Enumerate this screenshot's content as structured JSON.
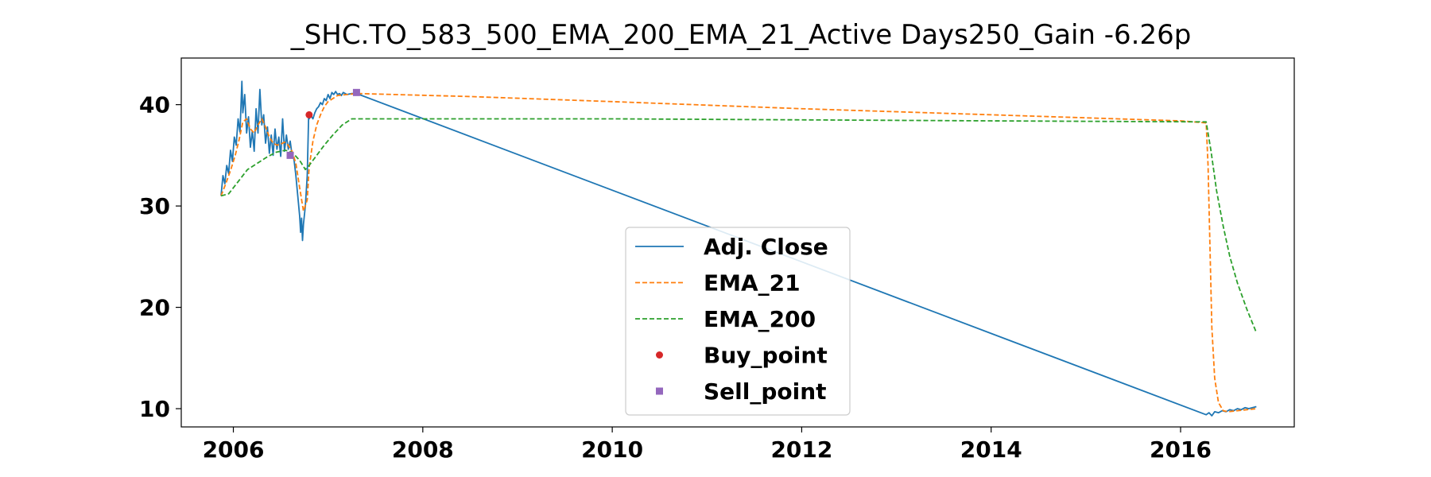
{
  "chart_data": {
    "type": "line",
    "title": "_SHC.TO_583_500_EMA_200_EMA_21_Active Days250_Gain  -6.26p",
    "xlabel": "",
    "ylabel": "",
    "xlim": [
      2005.45,
      2017.2
    ],
    "ylim": [
      8.2,
      44.6
    ],
    "x_ticks": [
      2006,
      2008,
      2010,
      2012,
      2014,
      2016
    ],
    "y_ticks": [
      10,
      20,
      30,
      40
    ],
    "grid": false,
    "legend_position": "lower center",
    "series": [
      {
        "name": "Adj. Close",
        "style": "solid",
        "color": "#1f77b4",
        "points": [
          [
            2005.87,
            31.0
          ],
          [
            2005.89,
            33.0
          ],
          [
            2005.91,
            32.2
          ],
          [
            2005.93,
            34.0
          ],
          [
            2005.95,
            33.2
          ],
          [
            2005.97,
            35.5
          ],
          [
            2005.99,
            34.4
          ],
          [
            2006.01,
            36.8
          ],
          [
            2006.03,
            36.0
          ],
          [
            2006.05,
            38.6
          ],
          [
            2006.07,
            37.3
          ],
          [
            2006.09,
            42.3
          ],
          [
            2006.1,
            39.2
          ],
          [
            2006.12,
            41.0
          ],
          [
            2006.14,
            37.2
          ],
          [
            2006.16,
            38.8
          ],
          [
            2006.18,
            35.8
          ],
          [
            2006.2,
            37.4
          ],
          [
            2006.22,
            35.4
          ],
          [
            2006.24,
            39.6
          ],
          [
            2006.26,
            37.2
          ],
          [
            2006.28,
            41.5
          ],
          [
            2006.3,
            38.0
          ],
          [
            2006.32,
            39.0
          ],
          [
            2006.34,
            36.2
          ],
          [
            2006.36,
            37.8
          ],
          [
            2006.38,
            35.2
          ],
          [
            2006.4,
            37.0
          ],
          [
            2006.42,
            35.0
          ],
          [
            2006.44,
            37.6
          ],
          [
            2006.46,
            35.6
          ],
          [
            2006.48,
            36.8
          ],
          [
            2006.5,
            34.9
          ],
          [
            2006.52,
            38.6
          ],
          [
            2006.54,
            35.4
          ],
          [
            2006.56,
            37.0
          ],
          [
            2006.58,
            35.6
          ],
          [
            2006.6,
            36.4
          ],
          [
            2006.62,
            35.0
          ],
          [
            2006.64,
            34.6
          ],
          [
            2006.66,
            33.0
          ],
          [
            2006.68,
            31.0
          ],
          [
            2006.7,
            29.0
          ],
          [
            2006.71,
            27.4
          ],
          [
            2006.72,
            28.8
          ],
          [
            2006.73,
            26.6
          ],
          [
            2006.74,
            28.2
          ],
          [
            2006.76,
            30.0
          ],
          [
            2006.78,
            33.0
          ],
          [
            2006.795,
            39.0
          ],
          [
            2006.8,
            38.6
          ],
          [
            2006.82,
            38.9
          ],
          [
            2006.84,
            38.6
          ],
          [
            2006.86,
            39.2
          ],
          [
            2006.88,
            39.6
          ],
          [
            2006.9,
            39.8
          ],
          [
            2006.92,
            40.2
          ],
          [
            2006.94,
            40.0
          ],
          [
            2006.96,
            40.6
          ],
          [
            2006.98,
            40.4
          ],
          [
            2007.0,
            41.0
          ],
          [
            2007.02,
            40.6
          ],
          [
            2007.04,
            41.2
          ],
          [
            2007.06,
            41.0
          ],
          [
            2007.08,
            41.3
          ],
          [
            2007.1,
            41.0
          ],
          [
            2007.12,
            41.1
          ],
          [
            2007.14,
            40.9
          ],
          [
            2007.16,
            41.2
          ],
          [
            2007.2,
            41.0
          ],
          [
            2007.25,
            41.1
          ],
          [
            2007.3,
            41.1
          ],
          [
            2016.27,
            9.4
          ],
          [
            2016.3,
            9.6
          ],
          [
            2016.33,
            9.3
          ],
          [
            2016.36,
            9.7
          ],
          [
            2016.4,
            9.6
          ],
          [
            2016.44,
            9.8
          ],
          [
            2016.48,
            9.7
          ],
          [
            2016.52,
            9.9
          ],
          [
            2016.56,
            9.8
          ],
          [
            2016.6,
            10.0
          ],
          [
            2016.64,
            9.9
          ],
          [
            2016.68,
            10.1
          ],
          [
            2016.72,
            10.0
          ],
          [
            2016.76,
            10.1
          ],
          [
            2016.8,
            10.2
          ]
        ]
      },
      {
        "name": "EMA_21",
        "style": "dashed",
        "color": "#ff7f0e",
        "points": [
          [
            2005.87,
            31.0
          ],
          [
            2005.92,
            32.2
          ],
          [
            2005.97,
            33.5
          ],
          [
            2006.02,
            35.0
          ],
          [
            2006.06,
            36.5
          ],
          [
            2006.1,
            38.3
          ],
          [
            2006.14,
            38.6
          ],
          [
            2006.18,
            37.6
          ],
          [
            2006.22,
            37.2
          ],
          [
            2006.26,
            38.0
          ],
          [
            2006.3,
            38.6
          ],
          [
            2006.34,
            37.8
          ],
          [
            2006.38,
            36.8
          ],
          [
            2006.42,
            36.2
          ],
          [
            2006.46,
            36.0
          ],
          [
            2006.5,
            36.1
          ],
          [
            2006.54,
            36.3
          ],
          [
            2006.58,
            36.0
          ],
          [
            2006.62,
            35.4
          ],
          [
            2006.66,
            34.2
          ],
          [
            2006.7,
            31.8
          ],
          [
            2006.74,
            29.5
          ],
          [
            2006.78,
            30.6
          ],
          [
            2006.8,
            33.8
          ],
          [
            2006.84,
            36.4
          ],
          [
            2006.88,
            38.0
          ],
          [
            2006.92,
            39.0
          ],
          [
            2006.96,
            39.8
          ],
          [
            2007.0,
            40.3
          ],
          [
            2007.05,
            40.6
          ],
          [
            2007.1,
            40.9
          ],
          [
            2007.2,
            41.0
          ],
          [
            2007.3,
            41.1
          ],
          [
            2008.5,
            40.8
          ],
          [
            2010.0,
            40.3
          ],
          [
            2012.0,
            39.6
          ],
          [
            2014.0,
            39.0
          ],
          [
            2016.0,
            38.4
          ],
          [
            2016.27,
            38.2
          ],
          [
            2016.29,
            34.0
          ],
          [
            2016.31,
            26.0
          ],
          [
            2016.33,
            18.0
          ],
          [
            2016.36,
            13.0
          ],
          [
            2016.4,
            10.6
          ],
          [
            2016.45,
            9.8
          ],
          [
            2016.5,
            9.7
          ],
          [
            2016.6,
            9.8
          ],
          [
            2016.7,
            9.9
          ],
          [
            2016.8,
            10.0
          ]
        ]
      },
      {
        "name": "EMA_200",
        "style": "dashed",
        "color": "#2ca02c",
        "points": [
          [
            2005.87,
            31.0
          ],
          [
            2005.95,
            31.2
          ],
          [
            2006.05,
            32.4
          ],
          [
            2006.15,
            33.6
          ],
          [
            2006.25,
            34.2
          ],
          [
            2006.35,
            34.8
          ],
          [
            2006.45,
            35.3
          ],
          [
            2006.55,
            35.5
          ],
          [
            2006.62,
            35.3
          ],
          [
            2006.7,
            34.5
          ],
          [
            2006.76,
            33.6
          ],
          [
            2006.8,
            34.0
          ],
          [
            2006.88,
            35.0
          ],
          [
            2006.96,
            36.0
          ],
          [
            2007.05,
            37.0
          ],
          [
            2007.15,
            38.0
          ],
          [
            2007.25,
            38.6
          ],
          [
            2008.0,
            38.6
          ],
          [
            2010.0,
            38.6
          ],
          [
            2012.0,
            38.5
          ],
          [
            2014.0,
            38.4
          ],
          [
            2016.27,
            38.3
          ],
          [
            2016.32,
            35.5
          ],
          [
            2016.38,
            31.5
          ],
          [
            2016.45,
            28.0
          ],
          [
            2016.52,
            25.0
          ],
          [
            2016.6,
            22.4
          ],
          [
            2016.7,
            19.8
          ],
          [
            2016.8,
            17.5
          ]
        ]
      },
      {
        "name": "Buy_point",
        "style": "marker",
        "marker": "circle",
        "color": "#d62728",
        "points": [
          [
            2006.8,
            39.0
          ]
        ]
      },
      {
        "name": "Sell_point",
        "style": "marker",
        "marker": "square",
        "color": "#9467bd",
        "points": [
          [
            2006.6,
            35.0
          ],
          [
            2007.3,
            41.2
          ]
        ]
      }
    ]
  }
}
